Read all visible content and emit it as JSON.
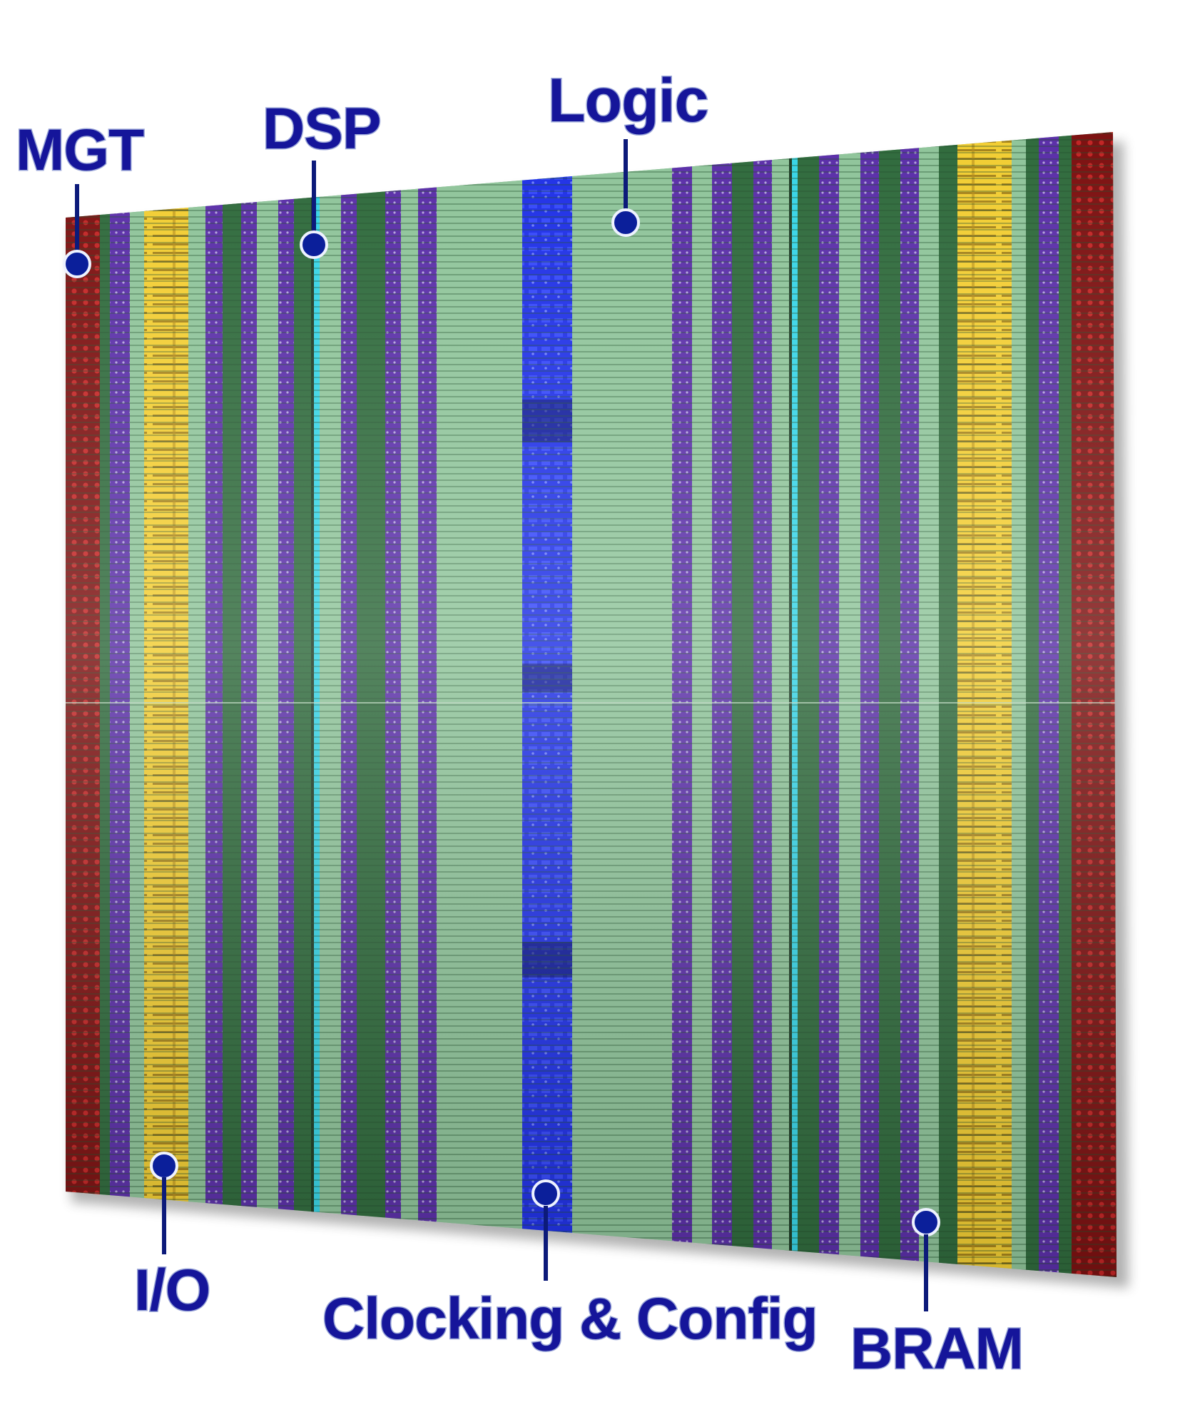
{
  "diagram": {
    "labels": {
      "mgt": "MGT",
      "dsp": "DSP",
      "logic": "Logic",
      "io": "I/O",
      "clocking": "Clocking & Config",
      "bram": "BRAM"
    },
    "colors": {
      "mgt": "#8c1414",
      "io_bram": "#e8c12a",
      "dsp": "#5a2ea8",
      "logic_light": "#8fc49a",
      "logic_dark": "#2f6a3c",
      "clocking": "#1f2fe0",
      "dsp_line": "#37d4e6",
      "label": "#15159a"
    }
  }
}
